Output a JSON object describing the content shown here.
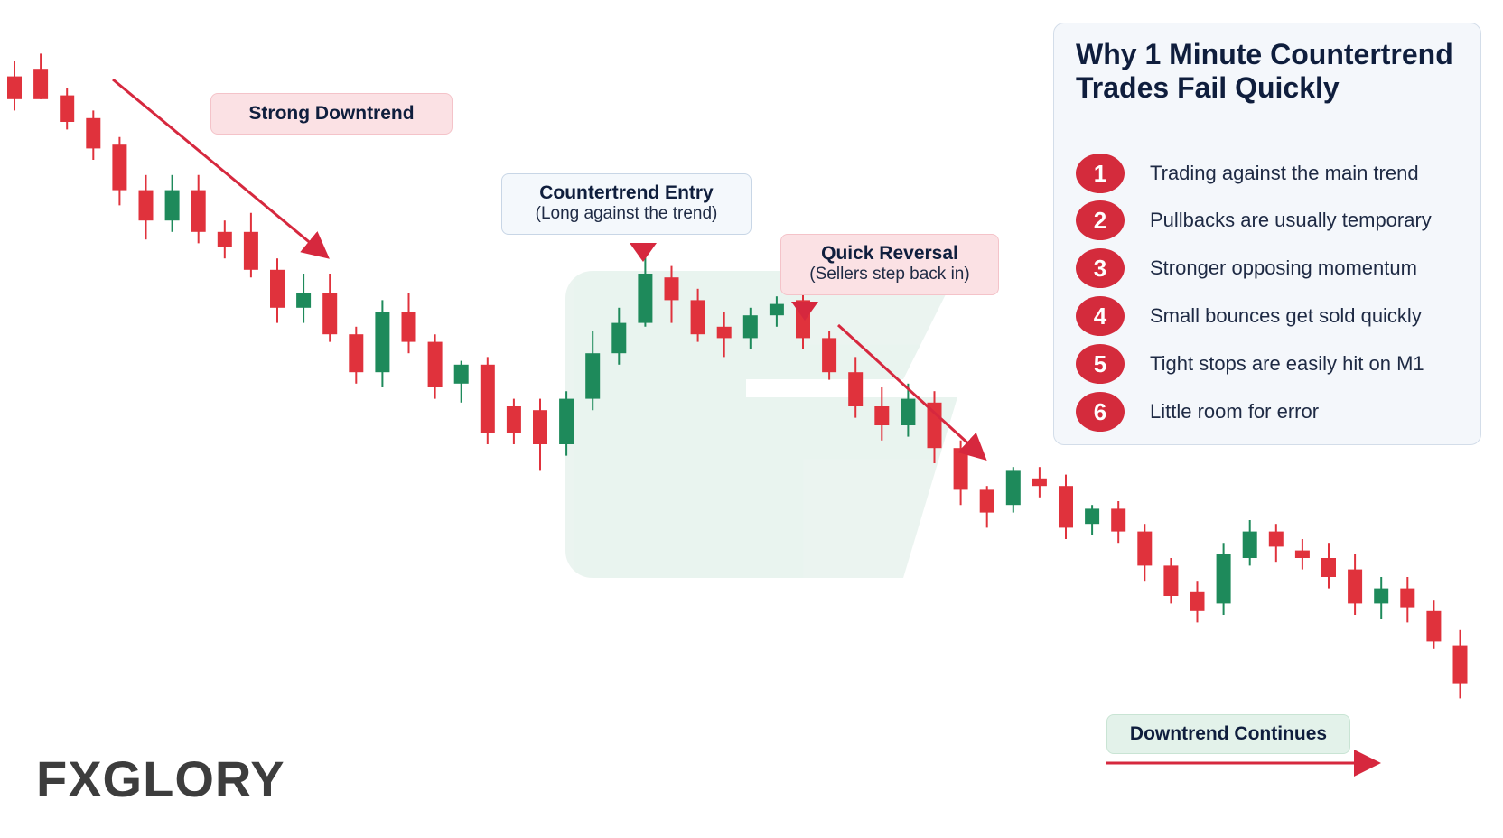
{
  "chart_data": {
    "type": "candlestick",
    "title": "",
    "xlabel": "",
    "ylabel": "",
    "ylim": [
      0,
      100
    ],
    "grid": false,
    "colors": {
      "bullish": "#1e8a5b",
      "bearish": "#e0323c",
      "arrow": "#d6283e"
    },
    "candles": [
      {
        "o": 93.5,
        "h": 95.5,
        "l": 89.0,
        "c": 90.5
      },
      {
        "o": 94.5,
        "h": 96.5,
        "l": 90.5,
        "c": 90.5
      },
      {
        "o": 91.0,
        "h": 92.0,
        "l": 86.5,
        "c": 87.5
      },
      {
        "o": 88.0,
        "h": 89.0,
        "l": 82.5,
        "c": 84.0
      },
      {
        "o": 84.5,
        "h": 85.5,
        "l": 76.5,
        "c": 78.5
      },
      {
        "o": 78.5,
        "h": 80.5,
        "l": 72.0,
        "c": 74.5
      },
      {
        "o": 74.5,
        "h": 80.5,
        "l": 73.0,
        "c": 78.5
      },
      {
        "o": 78.5,
        "h": 80.5,
        "l": 71.5,
        "c": 73.0
      },
      {
        "o": 73.0,
        "h": 74.5,
        "l": 69.5,
        "c": 71.0
      },
      {
        "o": 73.0,
        "h": 75.5,
        "l": 67.0,
        "c": 68.0
      },
      {
        "o": 68.0,
        "h": 69.5,
        "l": 61.0,
        "c": 63.0
      },
      {
        "o": 63.0,
        "h": 67.5,
        "l": 61.0,
        "c": 65.0
      },
      {
        "o": 65.0,
        "h": 67.5,
        "l": 58.5,
        "c": 59.5
      },
      {
        "o": 59.5,
        "h": 60.5,
        "l": 53.0,
        "c": 54.5
      },
      {
        "o": 54.5,
        "h": 64.0,
        "l": 52.5,
        "c": 62.5
      },
      {
        "o": 62.5,
        "h": 65.0,
        "l": 57.0,
        "c": 58.5
      },
      {
        "o": 58.5,
        "h": 59.5,
        "l": 51.0,
        "c": 52.5
      },
      {
        "o": 53.0,
        "h": 56.0,
        "l": 50.5,
        "c": 55.5
      },
      {
        "o": 55.5,
        "h": 56.5,
        "l": 45.0,
        "c": 46.5
      },
      {
        "o": 50.0,
        "h": 51.0,
        "l": 45.0,
        "c": 46.5
      },
      {
        "o": 49.5,
        "h": 51.0,
        "l": 41.5,
        "c": 45.0
      },
      {
        "o": 45.0,
        "h": 52.0,
        "l": 43.5,
        "c": 51.0
      },
      {
        "o": 51.0,
        "h": 60.0,
        "l": 49.5,
        "c": 57.0
      },
      {
        "o": 57.0,
        "h": 63.0,
        "l": 55.5,
        "c": 61.0
      },
      {
        "o": 61.0,
        "h": 70.0,
        "l": 60.5,
        "c": 67.5
      },
      {
        "o": 67.0,
        "h": 68.5,
        "l": 61.0,
        "c": 64.0
      },
      {
        "o": 64.0,
        "h": 65.5,
        "l": 58.5,
        "c": 59.5
      },
      {
        "o": 60.5,
        "h": 62.5,
        "l": 56.5,
        "c": 59.0
      },
      {
        "o": 59.0,
        "h": 63.0,
        "l": 57.5,
        "c": 62.0
      },
      {
        "o": 62.0,
        "h": 64.5,
        "l": 60.5,
        "c": 63.5
      },
      {
        "o": 64.0,
        "h": 65.0,
        "l": 57.5,
        "c": 59.0
      },
      {
        "o": 59.0,
        "h": 60.0,
        "l": 53.5,
        "c": 54.5
      },
      {
        "o": 54.5,
        "h": 56.5,
        "l": 48.5,
        "c": 50.0
      },
      {
        "o": 50.0,
        "h": 52.5,
        "l": 45.5,
        "c": 47.5
      },
      {
        "o": 47.5,
        "h": 53.0,
        "l": 46.0,
        "c": 51.0
      },
      {
        "o": 50.5,
        "h": 52.0,
        "l": 42.5,
        "c": 44.5
      },
      {
        "o": 44.5,
        "h": 45.5,
        "l": 37.0,
        "c": 39.0
      },
      {
        "o": 39.0,
        "h": 39.5,
        "l": 34.0,
        "c": 36.0
      },
      {
        "o": 37.0,
        "h": 42.0,
        "l": 36.0,
        "c": 41.5
      },
      {
        "o": 40.5,
        "h": 42.0,
        "l": 38.0,
        "c": 39.5
      },
      {
        "o": 39.5,
        "h": 41.0,
        "l": 32.5,
        "c": 34.0
      },
      {
        "o": 34.5,
        "h": 37.0,
        "l": 33.0,
        "c": 36.5
      },
      {
        "o": 36.5,
        "h": 37.5,
        "l": 32.0,
        "c": 33.5
      },
      {
        "o": 33.5,
        "h": 34.5,
        "l": 27.0,
        "c": 29.0
      },
      {
        "o": 29.0,
        "h": 30.0,
        "l": 24.0,
        "c": 25.0
      },
      {
        "o": 25.5,
        "h": 27.0,
        "l": 21.5,
        "c": 23.0
      },
      {
        "o": 24.0,
        "h": 32.0,
        "l": 22.5,
        "c": 30.5
      },
      {
        "o": 30.0,
        "h": 35.0,
        "l": 29.0,
        "c": 33.5
      },
      {
        "o": 33.5,
        "h": 34.5,
        "l": 29.5,
        "c": 31.5
      },
      {
        "o": 31.0,
        "h": 32.5,
        "l": 28.5,
        "c": 30.0
      },
      {
        "o": 30.0,
        "h": 32.0,
        "l": 26.0,
        "c": 27.5
      },
      {
        "o": 28.5,
        "h": 30.5,
        "l": 22.5,
        "c": 24.0
      },
      {
        "o": 24.0,
        "h": 27.5,
        "l": 22.0,
        "c": 26.0
      },
      {
        "o": 26.0,
        "h": 27.5,
        "l": 21.5,
        "c": 23.5
      },
      {
        "o": 23.0,
        "h": 24.5,
        "l": 18.0,
        "c": 19.0
      },
      {
        "o": 18.5,
        "h": 20.5,
        "l": 11.5,
        "c": 13.5
      }
    ],
    "annotations": {
      "strong_downtrend": "Strong Downtrend",
      "countertrend_entry_title": "Countertrend Entry",
      "countertrend_entry_sub": "(Long against the trend)",
      "quick_reversal_title": "Quick Reversal",
      "quick_reversal_sub": "(Sellers step back in)",
      "downtrend_continues": "Downtrend Continues"
    }
  },
  "panel": {
    "title": "Why 1 Minute Countertrend Trades Fail Quickly",
    "items": [
      {
        "num": "1",
        "text": "Trading against the main trend"
      },
      {
        "num": "2",
        "text": "Pullbacks are usually temporary"
      },
      {
        "num": "3",
        "text": "Stronger opposing momentum"
      },
      {
        "num": "4",
        "text": "Small bounces get sold quickly"
      },
      {
        "num": "5",
        "text": "Tight stops are easily hit on M1"
      },
      {
        "num": "6",
        "text": "Little room for error"
      }
    ]
  },
  "brand": {
    "name": "FXGLORY",
    "accent": "#f07a1e"
  }
}
